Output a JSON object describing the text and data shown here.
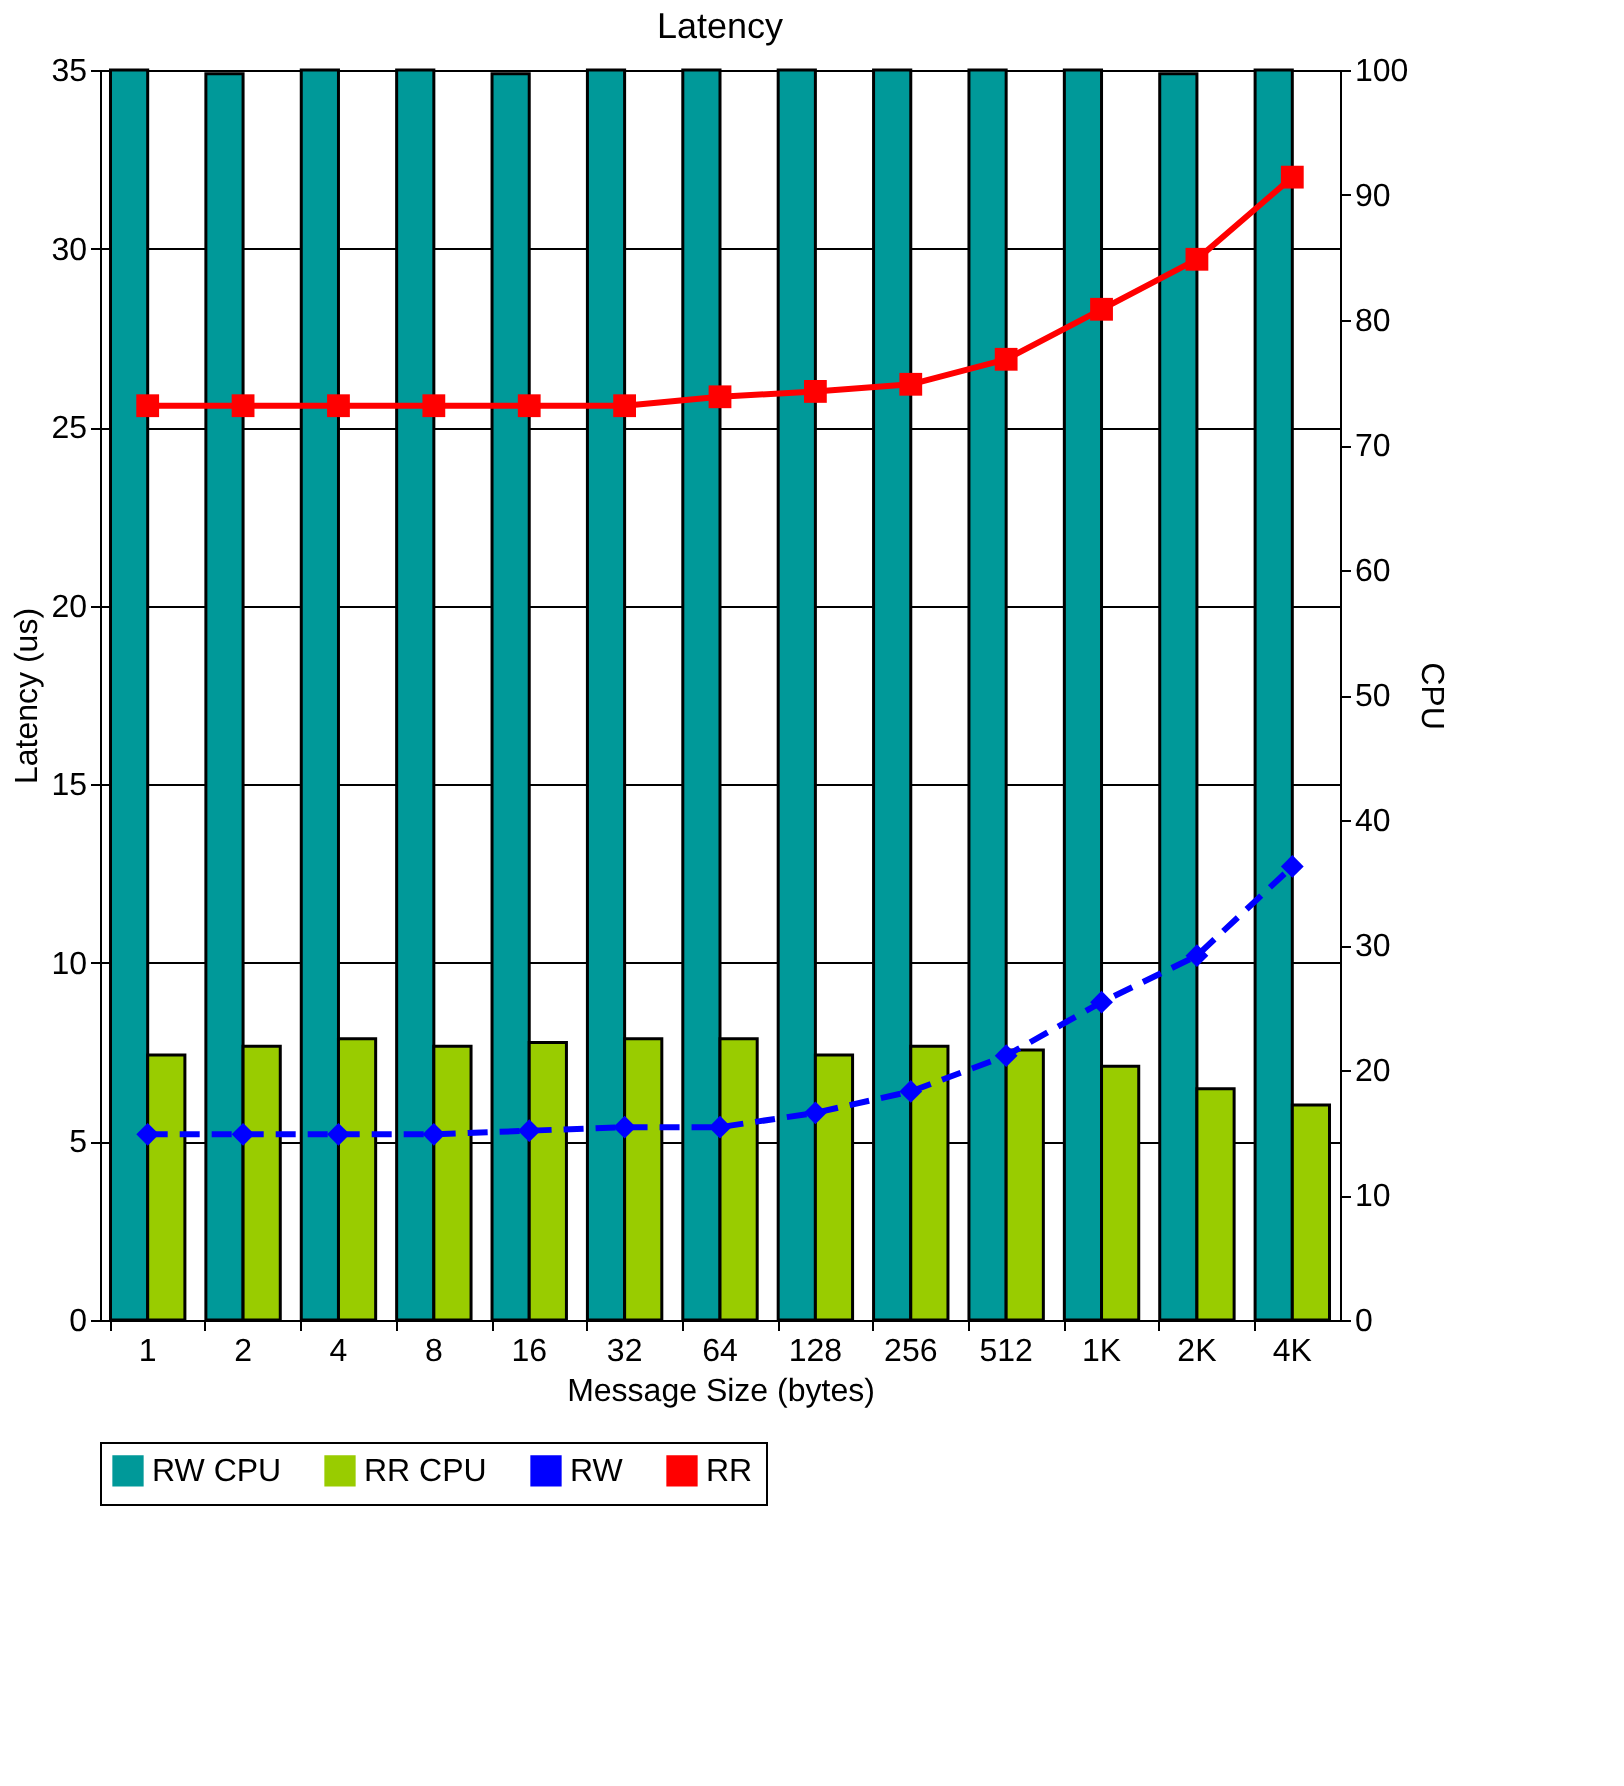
{
  "chart_data": {
    "type": "bar",
    "title": "Latency",
    "xlabel": "Message Size (bytes)",
    "ylabel": "Latency (us)",
    "y2label": "CPU",
    "categories": [
      "1",
      "2",
      "4",
      "8",
      "16",
      "32",
      "64",
      "128",
      "256",
      "512",
      "1K",
      "2K",
      "4K"
    ],
    "series": [
      {
        "name": "RW CPU",
        "axis": "y2",
        "color": "#009999",
        "values": [
          100,
          99.7,
          100,
          100,
          99.7,
          100,
          100,
          100,
          100,
          100,
          100,
          99.7,
          100
        ]
      },
      {
        "name": "RR CPU",
        "axis": "y2",
        "color": "#99cc00",
        "values": [
          21.2,
          21.9,
          22.5,
          21.9,
          22.2,
          22.5,
          22.5,
          21.2,
          21.9,
          21.6,
          20.3,
          18.5,
          17.2
        ]
      },
      {
        "name": "RW",
        "type": "line",
        "axis": "y",
        "color": "#0000ff",
        "marker": "diamond",
        "line_style": "dashed",
        "values": [
          5.2,
          5.2,
          5.2,
          5.2,
          5.3,
          5.4,
          5.4,
          5.8,
          6.4,
          7.4,
          8.9,
          10.2,
          12.7
        ]
      },
      {
        "name": "RR",
        "type": "line",
        "axis": "y",
        "color": "#ff0000",
        "marker": "square",
        "line_style": "solid",
        "values": [
          25.6,
          25.6,
          25.6,
          25.6,
          25.6,
          25.6,
          25.85,
          26.0,
          26.2,
          26.9,
          28.3,
          29.7,
          32.0
        ]
      }
    ],
    "ylim": [
      0,
      35
    ],
    "yticks": [
      0,
      5,
      10,
      15,
      20,
      25,
      30,
      35
    ],
    "y2lim": [
      0,
      100
    ],
    "y2ticks": [
      0,
      10,
      20,
      30,
      40,
      50,
      60,
      70,
      80,
      90,
      100
    ],
    "grid": "y",
    "legend": "bottom"
  }
}
